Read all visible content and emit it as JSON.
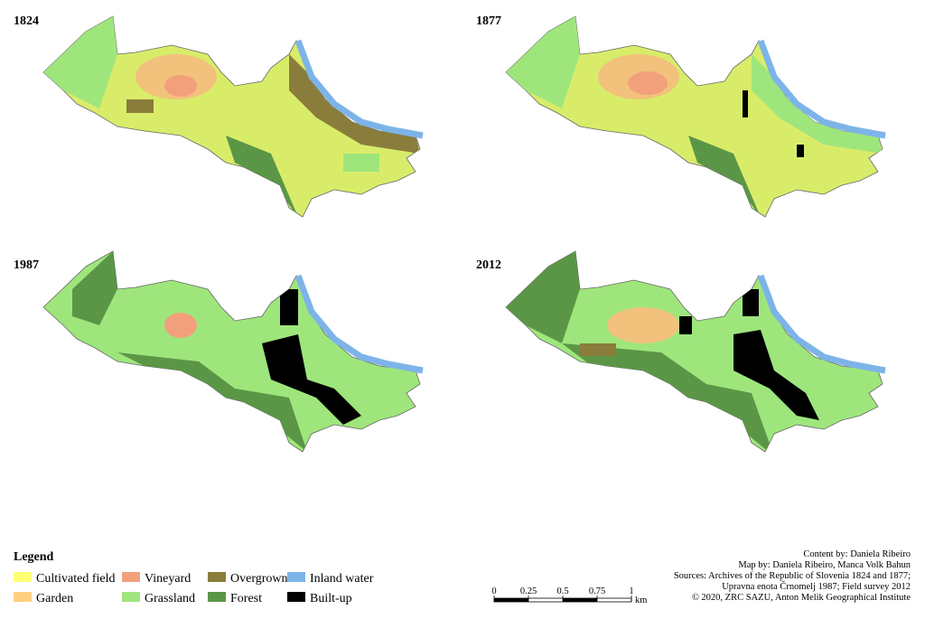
{
  "panels": [
    {
      "title": "1824"
    },
    {
      "title": "1877"
    },
    {
      "title": "1987"
    },
    {
      "title": "2012"
    }
  ],
  "legend": {
    "title": "Legend",
    "items": [
      {
        "label": "Cultivated field",
        "color": "#ffff73"
      },
      {
        "label": "Vineyard",
        "color": "#f2a07c"
      },
      {
        "label": "Overgrown",
        "color": "#8a7d3c"
      },
      {
        "label": "Inland water",
        "color": "#7db4e8"
      },
      {
        "label": "Garden",
        "color": "#ffd080"
      },
      {
        "label": "Grassland",
        "color": "#9ee67c"
      },
      {
        "label": "Forest",
        "color": "#5b9646"
      },
      {
        "label": "Built-up",
        "color": "#000000"
      }
    ]
  },
  "scale": {
    "ticks": [
      0,
      0.25,
      0.5,
      0.75,
      1
    ],
    "unit": "km"
  },
  "credits": [
    "Content by: Daniela Ribeiro",
    "Map by: Daniela Ribeiro, Manca Volk Bahun",
    "Sources: Archives of the Republic of Slovenia 1824 and 1877;",
    "Upravna enota Črnomelj 1987; Field survey 2012",
    "© 2020, ZRC SAZU, Anton Melik Geographical Institute"
  ]
}
